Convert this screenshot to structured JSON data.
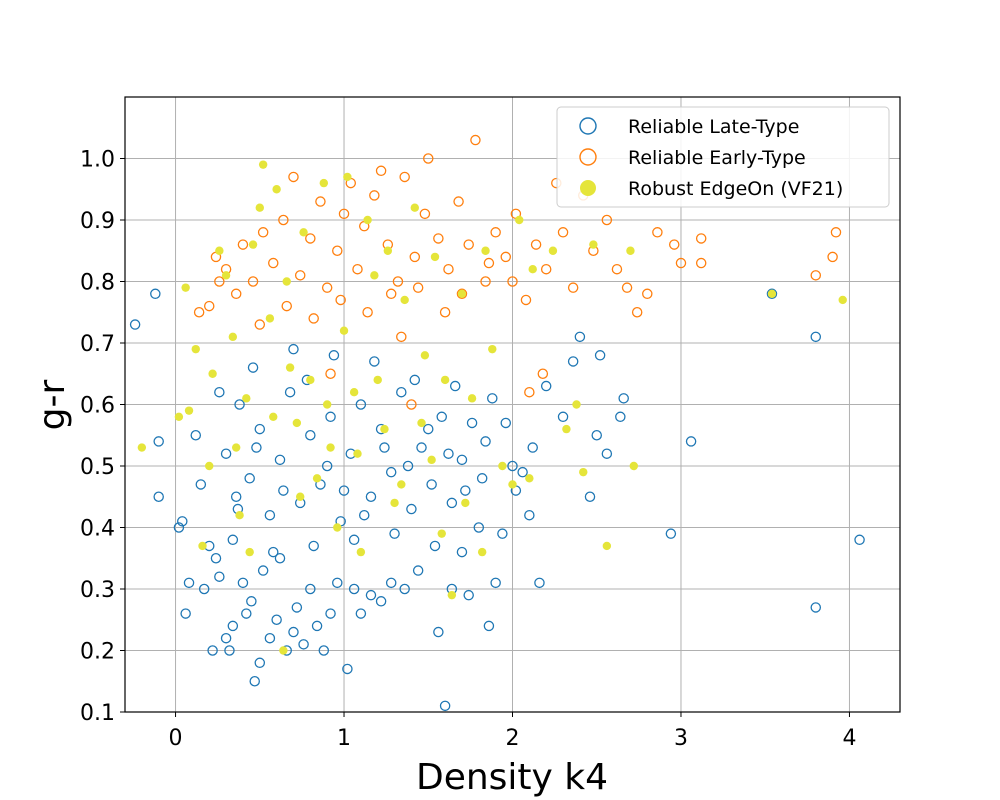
{
  "chart_data": {
    "type": "scatter",
    "xlabel": "Density k4",
    "ylabel": "g-r",
    "xlim": [
      -0.3,
      4.3
    ],
    "ylim": [
      0.1,
      1.1
    ],
    "xticks": [
      "0",
      "1",
      "2",
      "3",
      "4"
    ],
    "yticks": [
      "0.1",
      "0.2",
      "0.3",
      "0.4",
      "0.5",
      "0.6",
      "0.7",
      "0.8",
      "0.9",
      "1.0"
    ],
    "xtick_values": [
      0,
      1,
      2,
      3,
      4
    ],
    "ytick_values": [
      0.1,
      0.2,
      0.3,
      0.4,
      0.5,
      0.6,
      0.7,
      0.8,
      0.9,
      1.0
    ],
    "grid": true,
    "legend_position": "top-right",
    "series": [
      {
        "name": "Reliable Late-Type",
        "marker": "open-circle",
        "color": "#1f77b4",
        "points": [
          [
            -0.24,
            0.73
          ],
          [
            -0.12,
            0.78
          ],
          [
            -0.1,
            0.45
          ],
          [
            -0.1,
            0.54
          ],
          [
            0.02,
            0.4
          ],
          [
            0.04,
            0.41
          ],
          [
            0.06,
            0.26
          ],
          [
            0.08,
            0.31
          ],
          [
            0.12,
            0.55
          ],
          [
            0.15,
            0.47
          ],
          [
            0.17,
            0.3
          ],
          [
            0.2,
            0.37
          ],
          [
            0.22,
            0.2
          ],
          [
            0.24,
            0.35
          ],
          [
            0.26,
            0.32
          ],
          [
            0.3,
            0.22
          ],
          [
            0.32,
            0.2
          ],
          [
            0.34,
            0.24
          ],
          [
            0.37,
            0.43
          ],
          [
            0.4,
            0.31
          ],
          [
            0.42,
            0.26
          ],
          [
            0.45,
            0.28
          ],
          [
            0.47,
            0.15
          ],
          [
            0.5,
            0.18
          ],
          [
            0.52,
            0.33
          ],
          [
            0.56,
            0.22
          ],
          [
            0.6,
            0.25
          ],
          [
            0.62,
            0.35
          ],
          [
            0.66,
            0.2
          ],
          [
            0.7,
            0.23
          ],
          [
            0.72,
            0.27
          ],
          [
            0.76,
            0.21
          ],
          [
            0.8,
            0.3
          ],
          [
            0.84,
            0.24
          ],
          [
            0.88,
            0.2
          ],
          [
            0.92,
            0.26
          ],
          [
            0.96,
            0.31
          ],
          [
            1.02,
            0.17
          ],
          [
            1.06,
            0.3
          ],
          [
            1.1,
            0.26
          ],
          [
            1.16,
            0.29
          ],
          [
            1.22,
            0.28
          ],
          [
            1.28,
            0.31
          ],
          [
            1.36,
            0.3
          ],
          [
            1.44,
            0.33
          ],
          [
            1.56,
            0.23
          ],
          [
            1.6,
            0.11
          ],
          [
            1.64,
            0.3
          ],
          [
            1.7,
            0.36
          ],
          [
            1.74,
            0.29
          ],
          [
            1.8,
            0.4
          ],
          [
            1.86,
            0.24
          ],
          [
            1.9,
            0.31
          ],
          [
            1.94,
            0.39
          ],
          [
            2.02,
            0.46
          ],
          [
            2.06,
            0.49
          ],
          [
            2.1,
            0.42
          ],
          [
            2.12,
            0.53
          ],
          [
            2.16,
            0.31
          ],
          [
            2.2,
            0.63
          ],
          [
            2.3,
            0.58
          ],
          [
            2.36,
            0.67
          ],
          [
            2.4,
            0.71
          ],
          [
            2.46,
            0.45
          ],
          [
            2.5,
            0.55
          ],
          [
            2.52,
            0.68
          ],
          [
            2.56,
            0.52
          ],
          [
            2.64,
            0.58
          ],
          [
            2.66,
            0.61
          ],
          [
            2.94,
            0.39
          ],
          [
            3.06,
            0.54
          ],
          [
            3.54,
            0.78
          ],
          [
            3.8,
            0.27
          ],
          [
            3.8,
            0.71
          ],
          [
            4.06,
            0.38
          ],
          [
            0.3,
            0.52
          ],
          [
            0.38,
            0.6
          ],
          [
            0.44,
            0.48
          ],
          [
            0.5,
            0.56
          ],
          [
            0.56,
            0.42
          ],
          [
            0.62,
            0.51
          ],
          [
            0.68,
            0.62
          ],
          [
            0.74,
            0.44
          ],
          [
            0.8,
            0.55
          ],
          [
            0.86,
            0.47
          ],
          [
            0.92,
            0.58
          ],
          [
            0.98,
            0.41
          ],
          [
            1.04,
            0.52
          ],
          [
            1.1,
            0.6
          ],
          [
            1.16,
            0.45
          ],
          [
            1.22,
            0.56
          ],
          [
            1.28,
            0.49
          ],
          [
            1.34,
            0.62
          ],
          [
            1.4,
            0.43
          ],
          [
            1.46,
            0.53
          ],
          [
            1.52,
            0.47
          ],
          [
            1.58,
            0.58
          ],
          [
            1.64,
            0.44
          ],
          [
            1.7,
            0.51
          ],
          [
            1.76,
            0.57
          ],
          [
            1.82,
            0.48
          ],
          [
            1.88,
            0.61
          ],
          [
            0.34,
            0.38
          ],
          [
            0.46,
            0.66
          ],
          [
            0.58,
            0.36
          ],
          [
            0.7,
            0.69
          ],
          [
            0.82,
            0.37
          ],
          [
            0.94,
            0.68
          ],
          [
            1.06,
            0.38
          ],
          [
            1.18,
            0.67
          ],
          [
            1.3,
            0.39
          ],
          [
            1.42,
            0.64
          ],
          [
            1.54,
            0.37
          ],
          [
            1.66,
            0.63
          ],
          [
            0.26,
            0.62
          ],
          [
            0.36,
            0.45
          ],
          [
            0.48,
            0.53
          ],
          [
            0.64,
            0.46
          ],
          [
            0.78,
            0.64
          ],
          [
            0.9,
            0.5
          ],
          [
            1.0,
            0.46
          ],
          [
            1.12,
            0.42
          ],
          [
            1.24,
            0.53
          ],
          [
            1.38,
            0.5
          ],
          [
            1.5,
            0.56
          ],
          [
            1.62,
            0.52
          ],
          [
            1.72,
            0.46
          ],
          [
            1.84,
            0.54
          ],
          [
            1.96,
            0.57
          ],
          [
            2.0,
            0.5
          ]
        ]
      },
      {
        "name": "Reliable Early-Type",
        "marker": "open-circle",
        "color": "#ff7f0e",
        "points": [
          [
            0.14,
            0.75
          ],
          [
            0.2,
            0.76
          ],
          [
            0.24,
            0.84
          ],
          [
            0.3,
            0.82
          ],
          [
            0.36,
            0.78
          ],
          [
            0.4,
            0.86
          ],
          [
            0.46,
            0.8
          ],
          [
            0.52,
            0.88
          ],
          [
            0.58,
            0.83
          ],
          [
            0.64,
            0.9
          ],
          [
            0.7,
            0.97
          ],
          [
            0.74,
            0.81
          ],
          [
            0.8,
            0.87
          ],
          [
            0.86,
            0.93
          ],
          [
            0.9,
            0.79
          ],
          [
            0.96,
            0.85
          ],
          [
            1.0,
            0.91
          ],
          [
            1.04,
            0.96
          ],
          [
            1.08,
            0.82
          ],
          [
            1.12,
            0.89
          ],
          [
            1.18,
            0.94
          ],
          [
            1.22,
            0.98
          ],
          [
            1.26,
            0.86
          ],
          [
            1.32,
            0.8
          ],
          [
            1.36,
            0.97
          ],
          [
            1.42,
            0.84
          ],
          [
            1.48,
            0.91
          ],
          [
            1.5,
            1.0
          ],
          [
            1.56,
            0.87
          ],
          [
            1.62,
            0.82
          ],
          [
            1.68,
            0.93
          ],
          [
            1.74,
            0.86
          ],
          [
            1.78,
            1.03
          ],
          [
            1.84,
            0.8
          ],
          [
            1.9,
            0.88
          ],
          [
            1.96,
            0.84
          ],
          [
            2.02,
            0.91
          ],
          [
            2.08,
            0.77
          ],
          [
            2.14,
            0.86
          ],
          [
            2.2,
            0.82
          ],
          [
            2.26,
            0.96
          ],
          [
            2.3,
            0.88
          ],
          [
            2.36,
            0.79
          ],
          [
            2.42,
            0.94
          ],
          [
            2.48,
            0.85
          ],
          [
            2.56,
            0.9
          ],
          [
            2.62,
            0.82
          ],
          [
            2.68,
            0.79
          ],
          [
            2.74,
            0.75
          ],
          [
            2.8,
            0.78
          ],
          [
            2.86,
            0.88
          ],
          [
            2.96,
            0.86
          ],
          [
            3.0,
            0.83
          ],
          [
            3.12,
            0.87
          ],
          [
            3.12,
            0.83
          ],
          [
            3.8,
            0.81
          ],
          [
            3.9,
            0.84
          ],
          [
            3.92,
            0.88
          ],
          [
            1.34,
            0.71
          ],
          [
            1.6,
            0.75
          ],
          [
            0.5,
            0.73
          ],
          [
            0.66,
            0.76
          ],
          [
            0.82,
            0.74
          ],
          [
            0.98,
            0.77
          ],
          [
            1.14,
            0.75
          ],
          [
            1.28,
            0.78
          ],
          [
            1.44,
            0.79
          ],
          [
            1.7,
            0.78
          ],
          [
            1.86,
            0.83
          ],
          [
            2.0,
            0.8
          ],
          [
            2.1,
            0.62
          ],
          [
            2.18,
            0.65
          ],
          [
            1.4,
            0.6
          ],
          [
            0.92,
            0.65
          ],
          [
            0.26,
            0.8
          ]
        ]
      },
      {
        "name": "Robust EdgeOn (VF21)",
        "marker": "filled-circle",
        "color": "#e5e53a",
        "points": [
          [
            -0.2,
            0.53
          ],
          [
            0.02,
            0.58
          ],
          [
            0.06,
            0.79
          ],
          [
            0.08,
            0.59
          ],
          [
            0.12,
            0.69
          ],
          [
            0.16,
            0.37
          ],
          [
            0.2,
            0.5
          ],
          [
            0.26,
            0.85
          ],
          [
            0.3,
            0.81
          ],
          [
            0.34,
            0.71
          ],
          [
            0.38,
            0.42
          ],
          [
            0.42,
            0.61
          ],
          [
            0.46,
            0.86
          ],
          [
            0.5,
            0.92
          ],
          [
            0.52,
            0.99
          ],
          [
            0.56,
            0.74
          ],
          [
            0.6,
            0.95
          ],
          [
            0.64,
            0.2
          ],
          [
            0.68,
            0.66
          ],
          [
            0.72,
            0.57
          ],
          [
            0.76,
            0.88
          ],
          [
            0.8,
            0.64
          ],
          [
            0.84,
            0.48
          ],
          [
            0.88,
            0.96
          ],
          [
            0.92,
            0.53
          ],
          [
            0.96,
            0.4
          ],
          [
            1.0,
            0.72
          ],
          [
            1.02,
            0.97
          ],
          [
            1.06,
            0.62
          ],
          [
            1.1,
            0.36
          ],
          [
            1.14,
            0.9
          ],
          [
            1.18,
            0.81
          ],
          [
            1.24,
            0.56
          ],
          [
            1.3,
            0.44
          ],
          [
            1.36,
            0.77
          ],
          [
            1.42,
            0.92
          ],
          [
            1.48,
            0.68
          ],
          [
            1.52,
            0.51
          ],
          [
            1.58,
            0.39
          ],
          [
            1.64,
            0.29
          ],
          [
            1.7,
            0.78
          ],
          [
            1.76,
            0.61
          ],
          [
            1.82,
            0.36
          ],
          [
            1.88,
            0.69
          ],
          [
            1.94,
            0.5
          ],
          [
            2.0,
            0.47
          ],
          [
            2.04,
            0.9
          ],
          [
            2.1,
            0.48
          ],
          [
            2.24,
            0.85
          ],
          [
            2.32,
            0.56
          ],
          [
            2.38,
            0.6
          ],
          [
            2.42,
            0.49
          ],
          [
            2.48,
            0.86
          ],
          [
            2.56,
            0.37
          ],
          [
            2.7,
            0.85
          ],
          [
            2.72,
            0.5
          ],
          [
            3.54,
            0.78
          ],
          [
            3.96,
            0.77
          ],
          [
            0.36,
            0.53
          ],
          [
            0.58,
            0.58
          ],
          [
            0.74,
            0.45
          ],
          [
            0.9,
            0.6
          ],
          [
            1.08,
            0.52
          ],
          [
            1.2,
            0.64
          ],
          [
            1.34,
            0.47
          ],
          [
            1.46,
            0.57
          ],
          [
            1.6,
            0.64
          ],
          [
            1.72,
            0.44
          ],
          [
            0.44,
            0.36
          ],
          [
            0.66,
            0.8
          ],
          [
            1.26,
            0.85
          ],
          [
            1.54,
            0.84
          ],
          [
            1.84,
            0.85
          ],
          [
            2.12,
            0.82
          ],
          [
            0.22,
            0.65
          ]
        ]
      }
    ]
  }
}
